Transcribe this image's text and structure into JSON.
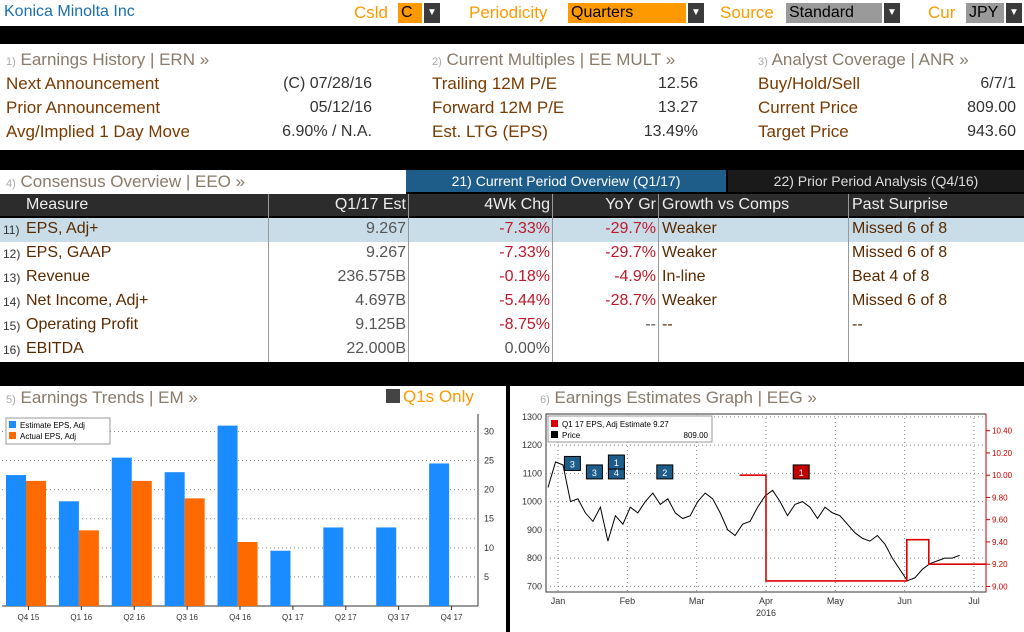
{
  "header": {
    "company": "Konica Minolta Inc",
    "csld_label": "Csld",
    "csld_value": "C",
    "periodicity_label": "Periodicity",
    "periodicity_value": "Quarters",
    "source_label": "Source",
    "source_value": "Standard",
    "cur_label": "Cur",
    "cur_value": "JPY"
  },
  "earnings_history": {
    "num": "1)",
    "title": "Earnings History | ERN »",
    "rows": [
      {
        "label": "Next Announcement",
        "value": "(C)  07/28/16"
      },
      {
        "label": "Prior Announcement",
        "value": "05/12/16"
      },
      {
        "label": "Avg/Implied 1 Day Move",
        "value": "6.90% / N.A."
      }
    ]
  },
  "current_multiples": {
    "num": "2)",
    "title": "Current Multiples | EE MULT »",
    "rows": [
      {
        "label": "Trailing 12M P/E",
        "value": "12.56"
      },
      {
        "label": "Forward 12M P/E",
        "value": "13.27"
      },
      {
        "label": "Est. LTG (EPS)",
        "value": "13.49%"
      }
    ]
  },
  "analyst_coverage": {
    "num": "3)",
    "title": "Analyst Coverage | ANR »",
    "rows": [
      {
        "label": "Buy/Hold/Sell",
        "value": "6/7/1"
      },
      {
        "label": "Current Price",
        "value": "809.00"
      },
      {
        "label": "Target Price",
        "value": "943.60"
      }
    ]
  },
  "consensus": {
    "num": "4)",
    "title": "Consensus Overview | EEO »",
    "tab_current": "21) Current Period Overview (Q1/17)",
    "tab_prior": "22) Prior Period Analysis (Q4/16)",
    "columns": [
      "Measure",
      "Q1/17 Est",
      "4Wk Chg",
      "YoY Gr",
      "Growth vs Comps",
      "Past Surprise"
    ],
    "rows": [
      {
        "idx": "11)",
        "measure": "EPS, Adj+",
        "est": "9.267",
        "chg": "-7.33%",
        "yoy": "-29.7%",
        "growth": "Weaker",
        "surprise": "Missed 6 of 8"
      },
      {
        "idx": "12)",
        "measure": "EPS, GAAP",
        "est": "9.267",
        "chg": "-7.33%",
        "yoy": "-29.7%",
        "growth": "Weaker",
        "surprise": "Missed 6 of 8"
      },
      {
        "idx": "13)",
        "measure": "Revenue",
        "est": "236.575B",
        "chg": "-0.18%",
        "yoy": "-4.9%",
        "growth": "In-line",
        "surprise": "Beat 4 of 8"
      },
      {
        "idx": "14)",
        "measure": "Net Income, Adj+",
        "est": "4.697B",
        "chg": "-5.44%",
        "yoy": "-28.7%",
        "growth": "Weaker",
        "surprise": "Missed 6 of 8"
      },
      {
        "idx": "15)",
        "measure": "Operating Profit",
        "est": "9.125B",
        "chg": "-8.75%",
        "yoy": "--",
        "growth": "--",
        "surprise": "--"
      },
      {
        "idx": "16)",
        "measure": "EBITDA",
        "est": "22.000B",
        "chg": "0.00%",
        "yoy": "",
        "growth": "",
        "surprise": ""
      }
    ]
  },
  "earnings_trends": {
    "num": "5)",
    "title": "Earnings Trends | EM »",
    "toggle_label": "Q1s Only"
  },
  "earnings_graph": {
    "num": "6)",
    "title": "Earnings Estimates Graph | EEG »",
    "year_label": "2016"
  },
  "colors": {
    "estimate": "#1a8cff",
    "actual": "#ff6a00",
    "price": "#000000",
    "estimate_line": "#dd0000"
  },
  "chart_data": [
    {
      "type": "bar",
      "categories": [
        "Q4 15",
        "Q1 16",
        "Q2 16",
        "Q3 16",
        "Q4 16",
        "Q1 17",
        "Q2 17",
        "Q3 17",
        "Q4 17"
      ],
      "series": [
        {
          "name": "Estimate EPS, Adj",
          "values": [
            22.5,
            18,
            25.5,
            23,
            31,
            9.5,
            13.5,
            13.5,
            24.5
          ]
        },
        {
          "name": "Actual EPS, Adj",
          "values": [
            21.5,
            13,
            21.5,
            18.5,
            11,
            null,
            null,
            null,
            null
          ]
        }
      ],
      "yticks": [
        5,
        10,
        15,
        20,
        25,
        30
      ],
      "ylim": [
        0,
        33
      ]
    },
    {
      "type": "line",
      "x_labels": [
        "Jan",
        "Feb",
        "Mar",
        "Apr",
        "May",
        "Jun",
        "Jul"
      ],
      "xlabel": "2016",
      "series": [
        {
          "name": "Q1 17 EPS, Adj Estimate",
          "legend_value": "9.27",
          "axis": "right",
          "x": [
            0.44,
            0.5,
            0.5,
            0.82,
            0.82,
            0.87,
            0.87,
            0.945,
            0.945,
            1.0
          ],
          "values": [
            10.0,
            10.0,
            9.05,
            9.05,
            9.42,
            9.42,
            9.2,
            9.2,
            9.2,
            9.2
          ]
        },
        {
          "name": "Price",
          "legend_value": "809.00",
          "axis": "left",
          "values": [
            1050,
            1140,
            1130,
            1000,
            1010,
            960,
            930,
            980,
            860,
            950,
            920,
            980,
            960,
            1000,
            1030,
            990,
            1010,
            960,
            940,
            950,
            1000,
            1030,
            1010,
            960,
            900,
            880,
            920,
            930,
            980,
            1020,
            1040,
            1000,
            950,
            990,
            1000,
            980,
            940,
            980,
            960,
            950,
            920,
            890,
            870,
            860,
            880,
            850,
            800,
            760,
            720,
            730,
            760,
            780,
            790,
            800,
            800,
            810
          ]
        }
      ],
      "markers": [
        {
          "label": "3",
          "color": "#1e5c8a"
        },
        {
          "label": "3",
          "color": "#1e5c8a"
        },
        {
          "label": "4",
          "color": "#1e5c8a"
        },
        {
          "label": "1",
          "color": "#1e5c8a"
        },
        {
          "label": "2",
          "color": "#1e5c8a"
        },
        {
          "label": "1",
          "color": "#c00000"
        }
      ],
      "yticks_left": [
        700,
        800,
        900,
        1000,
        1100,
        1200,
        1300
      ],
      "ylim_left": [
        680,
        1310
      ],
      "yticks_right": [
        9.0,
        9.2,
        9.4,
        9.6,
        9.8,
        10.0,
        10.2,
        10.4
      ],
      "ylim_right": [
        8.95,
        10.55
      ]
    }
  ]
}
